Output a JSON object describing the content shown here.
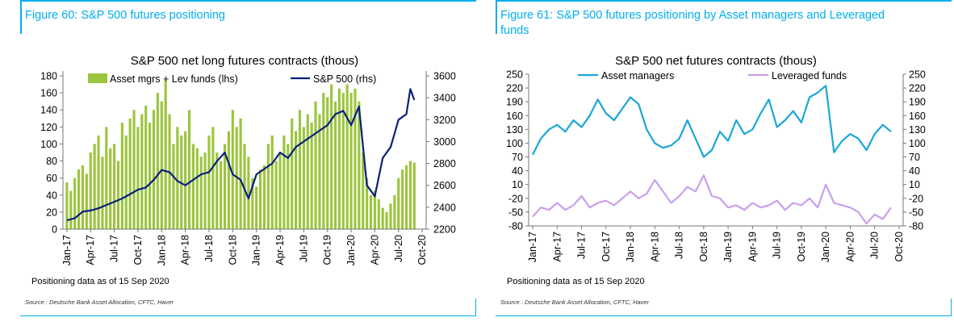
{
  "colors": {
    "accent": "#00aeef",
    "bars": "#9bc53d",
    "sp500": "#0b1f7a",
    "asset": "#1aa7d8",
    "lev": "#c9a0ec"
  },
  "fig60": {
    "title": "Figure 60: S&P 500 futures positioning",
    "positioning_note": "Positioning data as of 15 Sep 2020",
    "source": "Source : Deutsche Bank Asset Allocation, CFTC, Haver"
  },
  "fig61": {
    "title_line1": "Figure 61: S&P 500 futures positioning by Asset managers and Leveraged",
    "title_line2": "funds",
    "positioning_note": "Positioning data as of 15 Sep 2020",
    "source": "Source : Deutsche Bank Asset Allocation, CFTC, Haver"
  },
  "chart_data": [
    {
      "type": "bar",
      "title": "S&P 500 net long futures contracts  (thous)",
      "categories_axis": [
        "Jan-17",
        "Apr-17",
        "Jul-17",
        "Oct-17",
        "Jan-18",
        "Apr-18",
        "Jul-18",
        "Oct-18",
        "Jan-19",
        "Apr-19",
        "Jul-19",
        "Oct-19",
        "Jan-20",
        "Apr-20",
        "Jul-20",
        "Oct-20"
      ],
      "ylim_left": [
        0,
        180
      ],
      "yticks_left": [
        0,
        20,
        40,
        60,
        80,
        100,
        120,
        140,
        160,
        180
      ],
      "ylim_right": [
        2200,
        3600
      ],
      "yticks_right": [
        2200,
        2400,
        2600,
        2800,
        3000,
        3200,
        3400,
        3600
      ],
      "x_months_range": [
        -0.5,
        45.5
      ],
      "series": [
        {
          "name": "Asset mgrs + Lev funds (lhs)",
          "kind": "bar",
          "x_months": [
            0,
            0.5,
            1,
            1.5,
            2,
            2.5,
            3,
            3.5,
            4,
            4.5,
            5,
            5.5,
            6,
            6.5,
            7,
            7.5,
            8,
            8.5,
            9,
            9.5,
            10,
            10.5,
            11,
            11.5,
            12,
            12.5,
            13,
            13.5,
            14,
            14.5,
            15,
            15.5,
            16,
            16.5,
            17,
            17.5,
            18,
            18.5,
            19,
            19.5,
            20,
            20.5,
            21,
            21.5,
            22,
            22.5,
            23,
            23.5,
            24,
            24.5,
            25,
            25.5,
            26,
            26.5,
            27,
            27.5,
            28,
            28.5,
            29,
            29.5,
            30,
            30.5,
            31,
            31.5,
            32,
            32.5,
            33,
            33.5,
            34,
            34.5,
            35,
            35.5,
            36,
            36.5,
            37,
            37.5,
            38,
            38.5,
            39,
            39.5,
            40,
            40.5,
            41,
            41.5,
            42,
            42.5,
            43,
            43.5,
            44
          ],
          "values": [
            55,
            45,
            60,
            70,
            75,
            65,
            90,
            100,
            110,
            85,
            120,
            95,
            100,
            80,
            125,
            110,
            130,
            140,
            120,
            135,
            145,
            125,
            140,
            160,
            150,
            175,
            135,
            100,
            120,
            110,
            115,
            140,
            100,
            95,
            85,
            90,
            110,
            120,
            90,
            80,
            100,
            115,
            140,
            120,
            130,
            100,
            85,
            60,
            50,
            70,
            75,
            100,
            110,
            80,
            90,
            110,
            100,
            130,
            115,
            140,
            120,
            135,
            125,
            150,
            135,
            160,
            155,
            170,
            150,
            165,
            160,
            170,
            160,
            165,
            150,
            90,
            60,
            40,
            45,
            35,
            25,
            20,
            30,
            40,
            60,
            70,
            75,
            80,
            78
          ]
        },
        {
          "name": "S&P 500 (rhs)",
          "kind": "line",
          "x_months": [
            0,
            1,
            2,
            3,
            4,
            5,
            6,
            7,
            8,
            9,
            10,
            11,
            12,
            13,
            14,
            15,
            16,
            17,
            18,
            19,
            20,
            21,
            22,
            23,
            24,
            25,
            26,
            27,
            28,
            29,
            30,
            31,
            32,
            33,
            34,
            35,
            36,
            37,
            38,
            39,
            40,
            41,
            42,
            43,
            43.5,
            44
          ],
          "values": [
            2280,
            2300,
            2360,
            2370,
            2390,
            2420,
            2450,
            2480,
            2520,
            2560,
            2580,
            2650,
            2740,
            2720,
            2640,
            2600,
            2650,
            2700,
            2720,
            2820,
            2900,
            2700,
            2650,
            2480,
            2700,
            2750,
            2800,
            2900,
            2850,
            2950,
            3000,
            3050,
            3100,
            3150,
            3250,
            3280,
            3150,
            3320,
            2600,
            2500,
            2850,
            2950,
            3200,
            3250,
            3480,
            3380
          ]
        }
      ]
    },
    {
      "type": "line",
      "title": "S&P 500 net futures contracts  (thous)",
      "categories_axis": [
        "Jan-17",
        "Apr-17",
        "Jul-17",
        "Oct-17",
        "Jan-18",
        "Apr-18",
        "Jul-18",
        "Oct-18",
        "Jan-19",
        "Apr-19",
        "Jul-19",
        "Oct-19",
        "Jan-20",
        "Apr-20",
        "Jul-20",
        "Oct-20"
      ],
      "ylim": [
        -80,
        250
      ],
      "yticks": [
        -80,
        -50,
        -20,
        10,
        40,
        70,
        100,
        130,
        160,
        190,
        220,
        250
      ],
      "x_months_range": [
        -0.5,
        45.5
      ],
      "series": [
        {
          "name": "Asset managers",
          "x_months": [
            0,
            1,
            2,
            3,
            4,
            5,
            6,
            7,
            8,
            9,
            10,
            11,
            12,
            13,
            14,
            15,
            16,
            17,
            18,
            19,
            20,
            21,
            22,
            23,
            24,
            25,
            26,
            27,
            28,
            29,
            30,
            31,
            32,
            33,
            34,
            35,
            36,
            37,
            38,
            39,
            40,
            41,
            42,
            43,
            44
          ],
          "values": [
            75,
            110,
            130,
            140,
            125,
            150,
            135,
            160,
            195,
            165,
            150,
            175,
            200,
            185,
            130,
            100,
            90,
            95,
            110,
            150,
            110,
            70,
            85,
            125,
            105,
            150,
            120,
            130,
            165,
            195,
            135,
            150,
            170,
            145,
            200,
            210,
            225,
            80,
            105,
            120,
            110,
            85,
            120,
            140,
            125
          ]
        },
        {
          "name": "Leveraged funds",
          "x_months": [
            0,
            1,
            2,
            3,
            4,
            5,
            6,
            7,
            8,
            9,
            10,
            11,
            12,
            13,
            14,
            15,
            16,
            17,
            18,
            19,
            20,
            21,
            22,
            23,
            24,
            25,
            26,
            27,
            28,
            29,
            30,
            31,
            32,
            33,
            34,
            35,
            36,
            37,
            38,
            39,
            40,
            41,
            42,
            43,
            44
          ],
          "values": [
            -60,
            -40,
            -45,
            -30,
            -45,
            -35,
            -15,
            -40,
            -30,
            -25,
            -35,
            -20,
            -5,
            -20,
            -10,
            20,
            -5,
            -30,
            -15,
            5,
            -5,
            30,
            -15,
            -20,
            -40,
            -35,
            -45,
            -30,
            -40,
            -35,
            -25,
            -45,
            -30,
            -35,
            -20,
            -40,
            10,
            -30,
            -35,
            -40,
            -50,
            -75,
            -55,
            -65,
            -40
          ]
        }
      ]
    }
  ]
}
